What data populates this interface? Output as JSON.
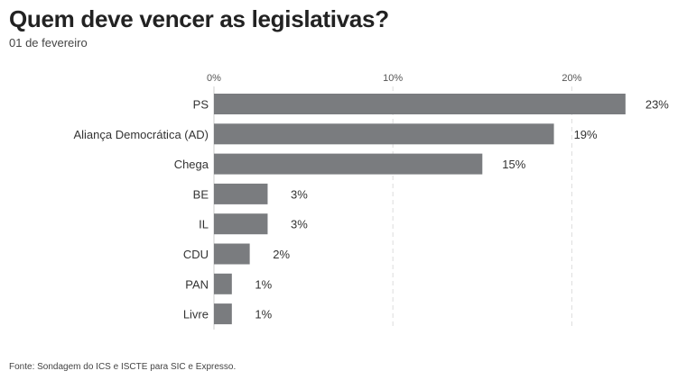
{
  "title": "Quem deve vencer as legislativas?",
  "subtitle": "01 de fevereiro",
  "source": "Fonte: Sondagem do ICS e ISCTE para SIC e Expresso.",
  "colors": {
    "bar": "#7a7c7f"
  },
  "chart_data": {
    "type": "bar",
    "orientation": "horizontal",
    "title": "Quem deve vencer as legislativas?",
    "subtitle": "01 de fevereiro",
    "categories": [
      "PS",
      "Aliança Democrática (AD)",
      "Chega",
      "BE",
      "IL",
      "CDU",
      "PAN",
      "Livre"
    ],
    "values": [
      23,
      19,
      15,
      3,
      3,
      2,
      1,
      1
    ],
    "value_labels": [
      "23%",
      "19%",
      "15%",
      "3%",
      "3%",
      "2%",
      "1%",
      "1%"
    ],
    "xlim": [
      0,
      23
    ],
    "xticks": [
      0,
      10,
      20
    ],
    "xtick_labels": [
      "0%",
      "10%",
      "20%"
    ],
    "axis_position": "top",
    "grid": true,
    "legend": "none"
  }
}
